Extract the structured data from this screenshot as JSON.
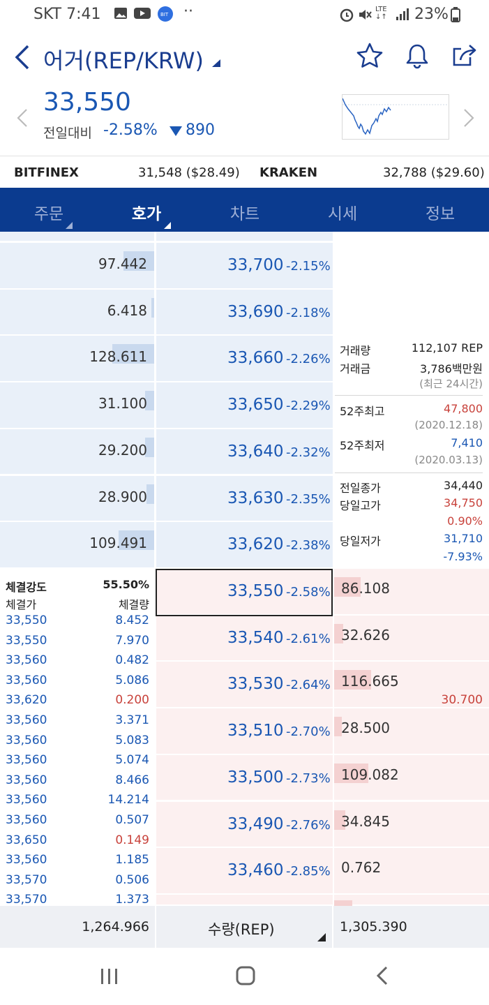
{
  "status_bar": {
    "carrier": "SKT 7:41",
    "battery": "23%",
    "lte": "LTE"
  },
  "header": {
    "title": "어거(REP/KRW)",
    "price": "33,550",
    "compare_label": "전일대비",
    "change_pct": "-2.58%",
    "change_amt": "890"
  },
  "exchanges": [
    {
      "name": "BITFINEX",
      "value": "31,548 ($28.49)"
    },
    {
      "name": "KRAKEN",
      "value": "32,788 ($29.60)"
    }
  ],
  "tabs": [
    {
      "label": "주문",
      "active": false
    },
    {
      "label": "호가",
      "active": true
    },
    {
      "label": "차트",
      "active": false
    },
    {
      "label": "시세",
      "active": false
    },
    {
      "label": "정보",
      "active": false
    }
  ],
  "asks": [
    {
      "qty": "97.442",
      "level": 0.2,
      "price": "33,700",
      "pct": "-2.15%"
    },
    {
      "qty": "6.418",
      "level": 0.02,
      "price": "33,690",
      "pct": "-2.18%"
    },
    {
      "qty": "128.611",
      "level": 0.27,
      "price": "33,660",
      "pct": "-2.26%"
    },
    {
      "qty": "31.100",
      "level": 0.06,
      "price": "33,650",
      "pct": "-2.29%"
    },
    {
      "qty": "29.200",
      "level": 0.06,
      "price": "33,640",
      "pct": "-2.32%"
    },
    {
      "qty": "28.900",
      "level": 0.05,
      "price": "33,630",
      "pct": "-2.35%"
    },
    {
      "qty": "109.491",
      "level": 0.23,
      "price": "33,620",
      "pct": "-2.38%"
    }
  ],
  "bids": [
    {
      "qty": "86.108",
      "level": 0.17,
      "price": "33,550",
      "pct": "-2.58%",
      "current": true
    },
    {
      "qty": "32.626",
      "level": 0.06,
      "price": "33,540",
      "pct": "-2.61%"
    },
    {
      "qty": "116.665",
      "level": 0.24,
      "price": "33,530",
      "pct": "-2.64%"
    },
    {
      "qty": "28.500",
      "level": 0.05,
      "price": "33,510",
      "pct": "-2.70%"
    },
    {
      "qty": "109.082",
      "level": 0.22,
      "price": "33,500",
      "pct": "-2.73%"
    },
    {
      "qty": "34.845",
      "level": 0.07,
      "price": "33,490",
      "pct": "-2.76%"
    },
    {
      "qty": "0.762",
      "level": 0.0,
      "price": "33,460",
      "pct": "-2.85%"
    }
  ],
  "bid_extra": "30.700",
  "info": {
    "volume_label": "거래량",
    "volume": "112,107 REP",
    "amount_label": "거래금",
    "amount": "3,786백만원",
    "period_note": "(최근 24시간)",
    "high52_label": "52주최고",
    "high52": "47,800",
    "high52_date": "(2020.12.18)",
    "low52_label": "52주최저",
    "low52": "7,410",
    "low52_date": "(2020.03.13)",
    "prev_close_label": "전일종가",
    "prev_close": "34,440",
    "day_high_label": "당일고가",
    "day_high": "34,750",
    "day_high_pct": "0.90%",
    "day_low_label": "당일저가",
    "day_low": "31,710",
    "day_low_pct": "-7.93%"
  },
  "trades": {
    "strength_label": "체결강도",
    "strength": "55.50%",
    "price_header": "체결가",
    "volume_header": "체결량",
    "rows": [
      {
        "price": "33,550",
        "vol": "8.452",
        "side": "sell"
      },
      {
        "price": "33,550",
        "vol": "7.970",
        "side": "sell"
      },
      {
        "price": "33,560",
        "vol": "0.482",
        "side": "sell"
      },
      {
        "price": "33,560",
        "vol": "5.086",
        "side": "sell"
      },
      {
        "price": "33,620",
        "vol": "0.200",
        "side": "buy"
      },
      {
        "price": "33,560",
        "vol": "3.371",
        "side": "sell"
      },
      {
        "price": "33,560",
        "vol": "5.083",
        "side": "sell"
      },
      {
        "price": "33,560",
        "vol": "5.074",
        "side": "sell"
      },
      {
        "price": "33,560",
        "vol": "8.466",
        "side": "sell"
      },
      {
        "price": "33,560",
        "vol": "14.214",
        "side": "sell"
      },
      {
        "price": "33,560",
        "vol": "0.507",
        "side": "sell"
      },
      {
        "price": "33,650",
        "vol": "0.149",
        "side": "buy"
      },
      {
        "price": "33,560",
        "vol": "1.185",
        "side": "sell"
      },
      {
        "price": "33,570",
        "vol": "0.506",
        "side": "sell"
      },
      {
        "price": "33,570",
        "vol": "1.373",
        "side": "sell"
      }
    ]
  },
  "footer": {
    "ask_total": "1,264.966",
    "unit_label": "수량(REP)",
    "bid_total": "1,305.390"
  },
  "colors": {
    "up": "#c8423b",
    "down": "#1a57b3",
    "navy": "#0b3b8f"
  }
}
